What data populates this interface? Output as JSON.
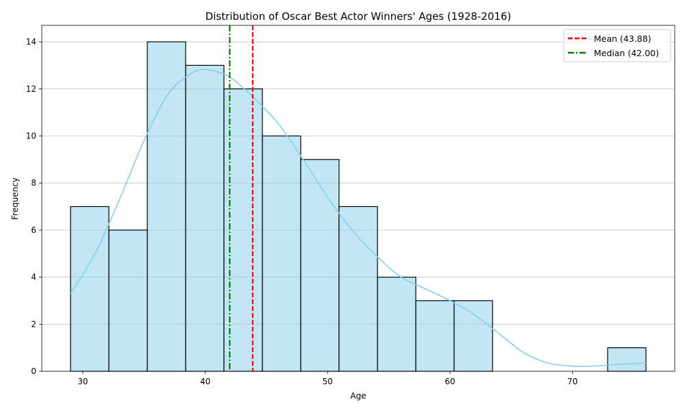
{
  "chart_data": {
    "type": "bar",
    "title": "Distribution of Oscar Best Actor Winners' Ages (1928-2016)",
    "xlabel": "Age",
    "ylabel": "Frequency",
    "xlim": [
      26.65,
      78.35
    ],
    "ylim": [
      0,
      14.7
    ],
    "xticks": [
      30,
      40,
      50,
      60,
      70
    ],
    "yticks": [
      0,
      2,
      4,
      6,
      8,
      10,
      12,
      14
    ],
    "grid": {
      "axis": "y",
      "on": true
    },
    "bins": [
      {
        "x0": 29.0,
        "x1": 32.13,
        "count": 7
      },
      {
        "x0": 32.13,
        "x1": 35.27,
        "count": 6
      },
      {
        "x0": 35.27,
        "x1": 38.4,
        "count": 14
      },
      {
        "x0": 38.4,
        "x1": 41.53,
        "count": 13
      },
      {
        "x0": 41.53,
        "x1": 44.67,
        "count": 12
      },
      {
        "x0": 44.67,
        "x1": 47.8,
        "count": 10
      },
      {
        "x0": 47.8,
        "x1": 50.93,
        "count": 9
      },
      {
        "x0": 50.93,
        "x1": 54.07,
        "count": 7
      },
      {
        "x0": 54.07,
        "x1": 57.2,
        "count": 4
      },
      {
        "x0": 57.2,
        "x1": 60.33,
        "count": 3
      },
      {
        "x0": 60.33,
        "x1": 63.47,
        "count": 3
      },
      {
        "x0": 63.47,
        "x1": 66.6,
        "count": 0
      },
      {
        "x0": 66.6,
        "x1": 69.73,
        "count": 0
      },
      {
        "x0": 69.73,
        "x1": 72.87,
        "count": 0
      },
      {
        "x0": 72.87,
        "x1": 76.0,
        "count": 1
      }
    ],
    "kde": {
      "x": [
        29,
        31,
        33,
        35,
        37,
        39,
        40.3,
        42,
        44,
        46,
        48,
        50,
        52,
        54,
        56,
        58,
        60,
        62,
        64,
        66,
        68,
        70,
        71,
        72,
        74,
        76
      ],
      "y": [
        3.3,
        5.0,
        7.3,
        9.8,
        11.8,
        12.7,
        12.8,
        12.5,
        11.6,
        10.5,
        9.0,
        7.4,
        6.0,
        4.9,
        4.0,
        3.5,
        3.0,
        2.4,
        1.6,
        0.8,
        0.35,
        0.22,
        0.21,
        0.23,
        0.3,
        0.35
      ]
    },
    "reference_lines": [
      {
        "label": "Mean (43.88)",
        "x": 43.88,
        "color": "#ff0000",
        "style": "dashed"
      },
      {
        "label": "Median (42.00)",
        "x": 42.0,
        "color": "#008000",
        "style": "dashdot"
      }
    ],
    "legend": {
      "position": "top-right"
    },
    "colors": {
      "bar_fill": "#87ceeb",
      "bar_fill_opacity": 0.5,
      "bar_edge": "#000000",
      "kde_line": "#87ceeb",
      "grid": "#c0c0c0"
    }
  }
}
